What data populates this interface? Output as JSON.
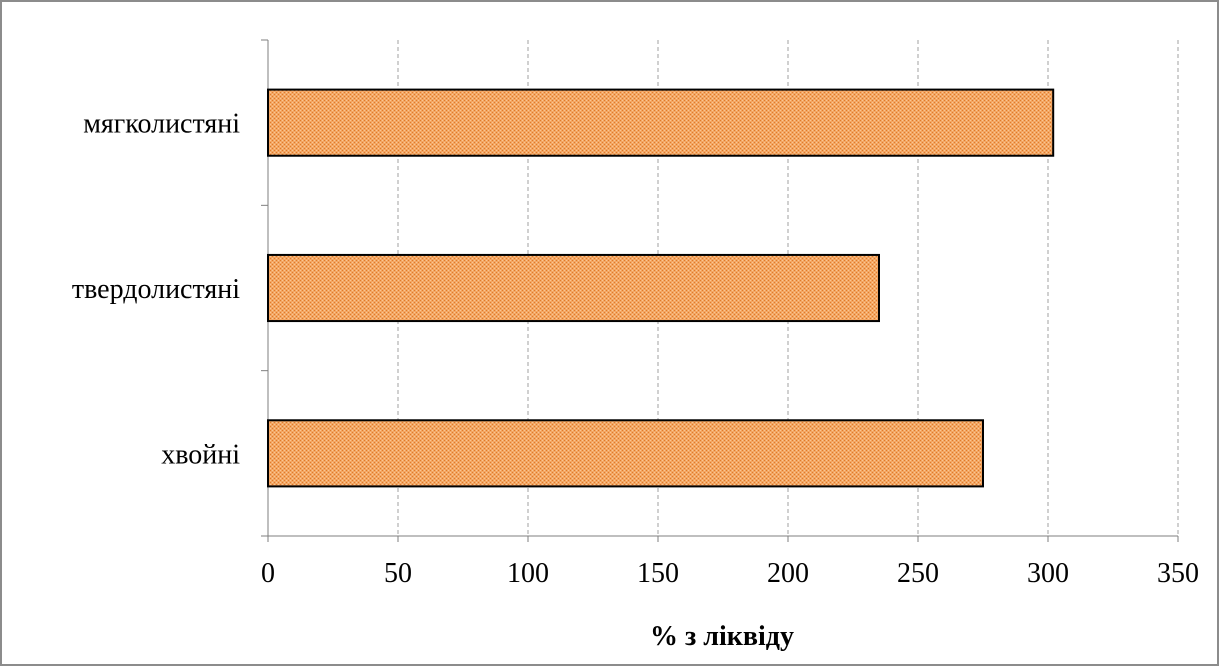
{
  "chart_data": {
    "type": "bar",
    "orientation": "horizontal",
    "categories": [
      "мягколистяні",
      "твердолистяні",
      "хвойні"
    ],
    "values": [
      302,
      235,
      275
    ],
    "xlabel": "% з ліквіду",
    "ylabel": "",
    "xlim": [
      0,
      350
    ],
    "xticks": [
      "0",
      "50",
      "100",
      "150",
      "200",
      "250",
      "300",
      "350"
    ],
    "grid": "vertical dashed",
    "legend": "none",
    "bar_color": "#f0a060",
    "bar_pattern": "stippled orange",
    "bar_outline": "#000000",
    "grid_color": "#a0a0a0"
  }
}
